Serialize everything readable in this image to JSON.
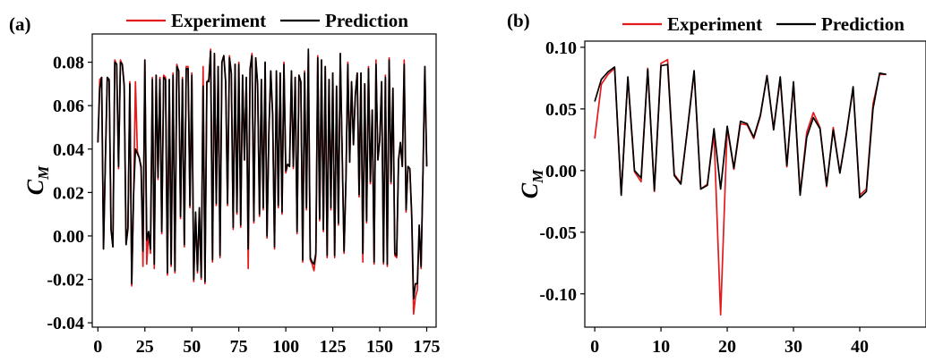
{
  "chart_data": [
    {
      "type": "line",
      "panel_label": "(a)",
      "ylabel": "C",
      "ylabel_sub": "M",
      "xlim": [
        -3,
        180
      ],
      "ylim": [
        -0.042,
        0.093
      ],
      "x_ticks": [
        0,
        25,
        50,
        75,
        100,
        125,
        150,
        175
      ],
      "y_ticks": [
        0.08,
        0.06,
        0.04,
        0.02,
        0.0,
        -0.02,
        -0.04
      ],
      "y_tick_labels": [
        "0.08",
        "0.06",
        "0.04",
        "0.02",
        "0.00",
        "-0.02",
        "-0.04"
      ],
      "legend": [
        "Experiment",
        "Prediction"
      ],
      "legend_position": "top-center",
      "series": [
        {
          "name": "Experiment",
          "color": "#e41a1c",
          "y": [
            0.043,
            0.072,
            0.073,
            -0.006,
            0.035,
            0.073,
            0.071,
            0.003,
            -0.005,
            0.081,
            0.079,
            0.031,
            0.081,
            0.079,
            0.07,
            -0.004,
            0.003,
            0.071,
            -0.023,
            0.018,
            0.071,
            0.039,
            0.036,
            0.031,
            -0.014,
            0.081,
            -0.013,
            0.002,
            -0.008,
            0.073,
            -0.015,
            0.074,
            0.026,
            0.073,
            0.001,
            0.074,
            0.073,
            -0.018,
            0.072,
            -0.014,
            0.075,
            -0.017,
            0.079,
            0.076,
            0.008,
            0.073,
            -0.005,
            0.078,
            0.078,
            0.013,
            0.075,
            -0.021,
            0.01,
            -0.017,
            0.012,
            -0.02,
            0.078,
            -0.022,
            0.071,
            0.072,
            0.086,
            -0.012,
            0.084,
            0.014,
            0.078,
            -0.01,
            0.08,
            0.083,
            0.071,
            0.014,
            0.083,
            0.075,
            0.003,
            0.079,
            0.01,
            0.08,
            0.004,
            0.074,
            0.035,
            0.073,
            -0.015,
            0.077,
            0.084,
            0.006,
            0.082,
            0.07,
            0.009,
            0.072,
            0.012,
            0.08,
            -0.001,
            0.048,
            0.076,
            0.055,
            -0.006,
            0.076,
            0.013,
            0.075,
            0.01,
            0.08,
            0.029,
            0.033,
            0.032,
            0.076,
            0.031,
            0.073,
            0.001,
            0.074,
            0.071,
            -0.012,
            0.076,
            0.012,
            0.084,
            -0.011,
            -0.013,
            -0.016,
            -0.009,
            0.083,
            0.007,
            0.081,
            0.002,
            0.078,
            -0.01,
            0.072,
            0.012,
            0.075,
            -0.01,
            0.069,
            0.005,
            0.084,
            0.038,
            -0.008,
            0.025,
            0.08,
            0.034,
            0.071,
            0.042,
            0.065,
            0.075,
            0.018,
            0.075,
            -0.012,
            0.07,
            0.006,
            0.078,
            0.024,
            0.058,
            -0.013,
            0.081,
            0.035,
            0.044,
            0.071,
            -0.013,
            0.074,
            -0.014,
            0.082,
            0.024,
            0.068,
            -0.009,
            -0.01,
            0.035,
            0.043,
            0.032,
            0.081,
            0.011,
            0.032,
            0.031,
            0.009,
            -0.036,
            -0.028,
            -0.025,
            0.004,
            -0.015,
            0.029,
            0.078,
            0.032
          ]
        },
        {
          "name": "Prediction",
          "color": "#000000",
          "y": [
            0.043,
            0.068,
            0.073,
            -0.006,
            0.035,
            0.073,
            0.072,
            0.003,
            -0.005,
            0.08,
            0.079,
            0.032,
            0.08,
            0.079,
            0.069,
            -0.004,
            0.004,
            0.07,
            -0.022,
            0.019,
            0.04,
            0.038,
            0.036,
            0.032,
            -0.007,
            0.081,
            -0.002,
            0.002,
            -0.006,
            0.072,
            -0.013,
            0.074,
            0.027,
            0.072,
            0.002,
            0.073,
            0.072,
            -0.017,
            0.072,
            -0.013,
            0.074,
            -0.016,
            0.078,
            0.076,
            0.009,
            0.072,
            -0.004,
            0.077,
            0.077,
            0.014,
            0.074,
            -0.02,
            0.011,
            -0.016,
            0.013,
            -0.019,
            0.069,
            -0.021,
            0.071,
            0.071,
            0.085,
            -0.011,
            0.084,
            0.015,
            0.078,
            -0.009,
            0.08,
            0.083,
            0.071,
            0.015,
            0.082,
            0.075,
            0.004,
            0.079,
            0.011,
            0.079,
            0.005,
            0.074,
            0.035,
            0.073,
            -0.006,
            0.077,
            0.083,
            0.007,
            0.082,
            0.07,
            0.01,
            0.072,
            0.013,
            0.08,
            0.0,
            0.048,
            0.076,
            0.056,
            -0.005,
            0.076,
            0.014,
            0.075,
            0.011,
            0.079,
            0.03,
            0.033,
            0.032,
            0.076,
            0.032,
            0.073,
            0.002,
            0.074,
            0.071,
            -0.011,
            0.075,
            0.013,
            0.086,
            -0.01,
            -0.012,
            -0.013,
            -0.008,
            0.082,
            0.008,
            0.081,
            0.003,
            0.078,
            -0.009,
            0.072,
            0.013,
            0.075,
            -0.009,
            0.069,
            0.006,
            0.084,
            0.038,
            -0.007,
            0.026,
            0.079,
            0.034,
            0.071,
            0.042,
            0.065,
            0.075,
            0.019,
            0.075,
            -0.008,
            0.07,
            0.007,
            0.077,
            0.025,
            0.058,
            -0.012,
            0.079,
            0.035,
            0.044,
            0.071,
            -0.012,
            0.073,
            -0.013,
            0.081,
            0.025,
            0.068,
            -0.008,
            -0.009,
            0.035,
            0.043,
            0.032,
            0.079,
            0.012,
            0.032,
            0.031,
            0.01,
            -0.029,
            -0.022,
            -0.022,
            0.005,
            -0.014,
            0.029,
            0.078,
            0.032
          ]
        }
      ]
    },
    {
      "type": "line",
      "panel_label": "(b)",
      "ylabel": "C",
      "ylabel_sub": "M",
      "xlim": [
        -1.5,
        50
      ],
      "ylim": [
        -0.127,
        0.105
      ],
      "x_ticks": [
        0,
        10,
        20,
        30,
        40
      ],
      "y_ticks": [
        0.1,
        0.05,
        0.0,
        -0.05,
        -0.1
      ],
      "y_tick_labels": [
        "0.10",
        "0.05",
        "0.00",
        "-0.05",
        "-0.10"
      ],
      "legend": [
        "Experiment",
        "Prediction"
      ],
      "legend_position": "top-center",
      "series": [
        {
          "name": "Experiment",
          "color": "#e41a1c",
          "x": [
            0,
            1,
            2,
            3,
            4,
            5,
            6,
            7,
            8,
            9,
            10,
            11,
            12,
            13,
            14,
            15,
            16,
            17,
            18,
            19,
            20,
            21,
            22,
            23,
            24,
            25,
            26,
            27,
            28,
            29,
            30,
            31,
            32,
            33,
            34,
            35,
            36,
            37,
            38,
            39,
            40,
            41,
            42,
            43,
            44
          ],
          "y": [
            0.026,
            0.07,
            0.078,
            0.083,
            -0.019,
            0.075,
            -0.001,
            -0.009,
            0.083,
            -0.017,
            0.087,
            0.09,
            -0.003,
            -0.01,
            0.033,
            0.08,
            -0.015,
            -0.011,
            0.03,
            -0.117,
            0.035,
            0.001,
            0.038,
            0.037,
            0.026,
            0.044,
            0.077,
            0.034,
            0.075,
            0.003,
            0.071,
            -0.019,
            0.031,
            0.047,
            0.035,
            -0.013,
            0.035,
            -0.002,
            0.031,
            0.067,
            -0.02,
            -0.015,
            0.054,
            0.078,
            0.078
          ]
        },
        {
          "name": "Prediction",
          "color": "#000000",
          "x": [
            0,
            1,
            2,
            3,
            4,
            5,
            6,
            7,
            8,
            9,
            10,
            11,
            12,
            13,
            14,
            15,
            16,
            17,
            18,
            19,
            20,
            21,
            22,
            23,
            24,
            25,
            26,
            27,
            28,
            29,
            30,
            31,
            32,
            33,
            34,
            35,
            36,
            37,
            38,
            39,
            40,
            41,
            42,
            43,
            44
          ],
          "y": [
            0.056,
            0.074,
            0.08,
            0.084,
            -0.02,
            0.076,
            0.0,
            -0.006,
            0.082,
            -0.016,
            0.085,
            0.086,
            -0.004,
            -0.011,
            0.034,
            0.081,
            -0.015,
            -0.012,
            0.034,
            -0.015,
            0.036,
            0.002,
            0.04,
            0.038,
            0.027,
            0.045,
            0.077,
            0.033,
            0.076,
            0.004,
            0.072,
            -0.02,
            0.027,
            0.043,
            0.034,
            -0.012,
            0.033,
            -0.002,
            0.03,
            0.068,
            -0.022,
            -0.017,
            0.05,
            0.079,
            0.078
          ]
        }
      ]
    }
  ]
}
